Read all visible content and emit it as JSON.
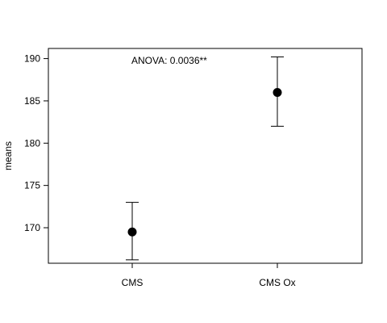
{
  "chart_data": {
    "type": "scatter",
    "title": "",
    "xlabel": "",
    "ylabel": "means",
    "categories": [
      "CMS",
      "CMS Ox"
    ],
    "series": [
      {
        "values": [
          169.5,
          186.0
        ],
        "error_lower": [
          166.2,
          182.0
        ],
        "error_upper": [
          173.0,
          190.2
        ]
      }
    ],
    "yticks": [
      170,
      175,
      180,
      185,
      190
    ],
    "ylim": [
      165.8,
      191.2
    ],
    "annotation": "ANOVA: 0.0036**",
    "grid": false,
    "legend": "none",
    "marker": "filled-circle",
    "color": "#000000"
  }
}
